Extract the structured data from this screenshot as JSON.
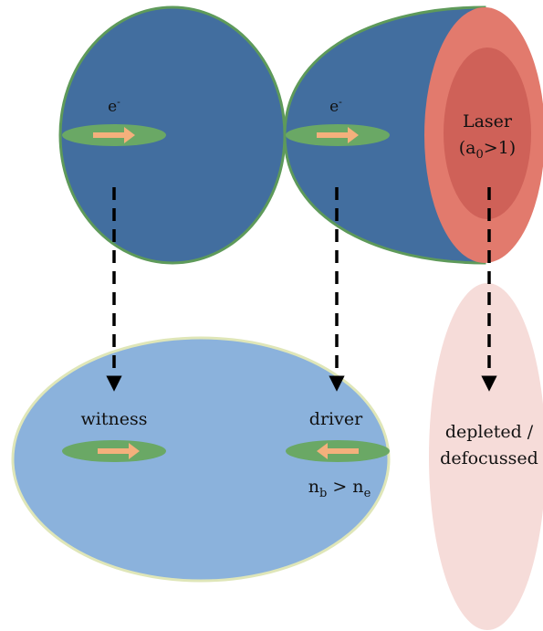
{
  "colors": {
    "bubble_dark": "#426e9f",
    "bubble_outline": "#5e9a5a",
    "laser_outer": "#e27a6d",
    "laser_inner": "#cf6158",
    "bunch_fill": "#6aa865",
    "arrow_fill": "#f4b07c",
    "bubble_light": "#8bb2dc",
    "bubble_light_outline": "#dfe6b8",
    "depleted_fill": "#f6dcd9",
    "dashed_arrow": "#000000"
  },
  "top": {
    "witness_electron_label": "e-",
    "driver_electron_label": "e-",
    "laser_label_line1": "Laser",
    "laser_label_line2": "(a0>1)"
  },
  "bottom": {
    "witness_label": "witness",
    "driver_label": "driver",
    "density_condition": "nb > ne",
    "depleted_line1": "depleted /",
    "depleted_line2": "defocussed"
  }
}
